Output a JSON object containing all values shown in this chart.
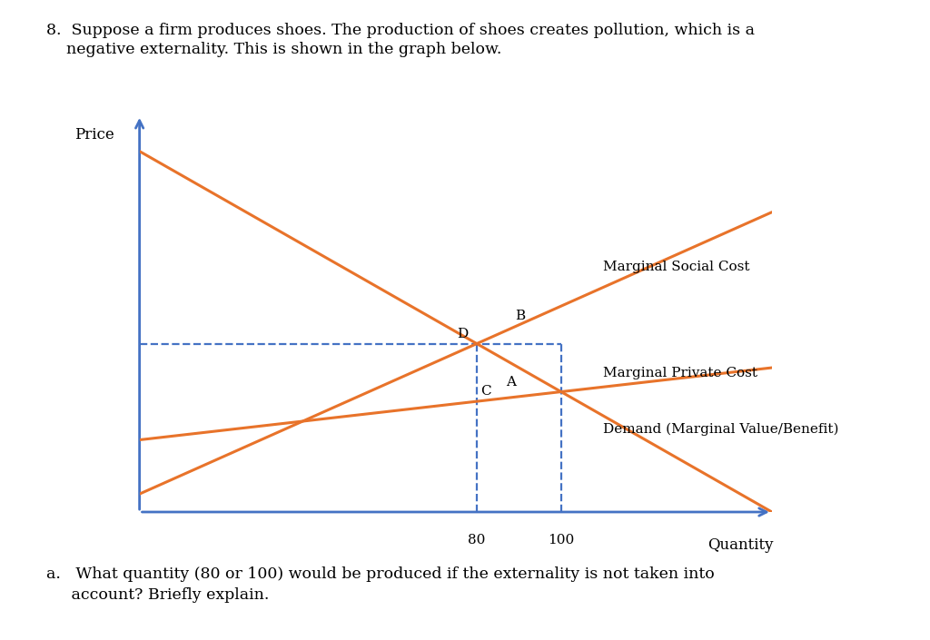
{
  "title_line1": "8.  Suppose a firm produces shoes. The production of shoes creates pollution, which is a",
  "title_line2": "    negative externality. This is shown in the graph below.",
  "question_a_line1": "a.   What quantity (80 or 100) would be produced if the externality is not taken into",
  "question_a_line2": "     account? Briefly explain.",
  "xlabel": "Quantity",
  "ylabel": "Price",
  "q80": 80,
  "q100": 100,
  "label_msc": "Marginal Social Cost",
  "label_mpc": "Marginal Private Cost",
  "label_demand": "Demand (Marginal Value/Benefit)",
  "line_color_orange": "#E8732A",
  "axis_color": "#4472C4",
  "dashed_color": "#4472C4",
  "bg_color": "#FFFFFF",
  "text_color": "#000000",
  "demand_x0": 0,
  "demand_y0": 100,
  "demand_x1": 150,
  "demand_y1": 0,
  "mpc_y_intercept": 20,
  "msc_y_intercept": 5,
  "x_range": [
    0,
    150
  ],
  "y_range": [
    0,
    110
  ]
}
